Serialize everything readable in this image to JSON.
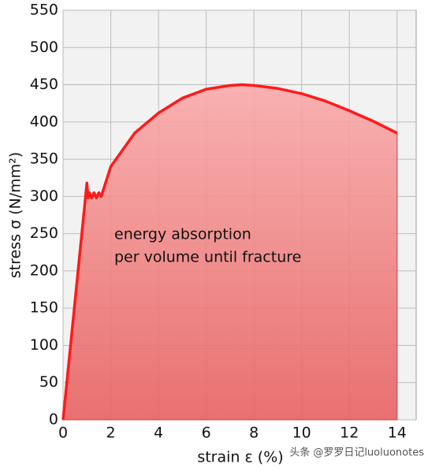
{
  "chart_data": {
    "type": "line",
    "y_label": "stress σ (N/mm²)",
    "x_label": "strain ε (%)",
    "annotation": [
      "energy absorption",
      "per volume until fracture"
    ],
    "watermark": "头条 @罗罗日记luoluonotes",
    "x": [
      0,
      1,
      1.05,
      1.1,
      1.2,
      1.3,
      1.4,
      1.5,
      1.6,
      2,
      3,
      4,
      5,
      6,
      7,
      7.5,
      8,
      9,
      10,
      11,
      12,
      13,
      14
    ],
    "series": [
      {
        "color": "#ff1a1a",
        "fill": true,
        "values": [
          0,
          318,
          298,
          305,
          298,
          305,
          298,
          305,
          300,
          340,
          385,
          412,
          432,
          444,
          449,
          450,
          449,
          445,
          438,
          428,
          415,
          401,
          385
        ]
      }
    ],
    "xlim": [
      0,
      14.8
    ],
    "xticks": [
      0,
      2,
      4,
      6,
      8,
      10,
      12,
      14
    ],
    "ylim": [
      0,
      550
    ],
    "yticks": [
      0,
      50,
      100,
      150,
      200,
      250,
      300,
      350,
      400,
      450,
      500,
      550
    ],
    "grid": true
  }
}
